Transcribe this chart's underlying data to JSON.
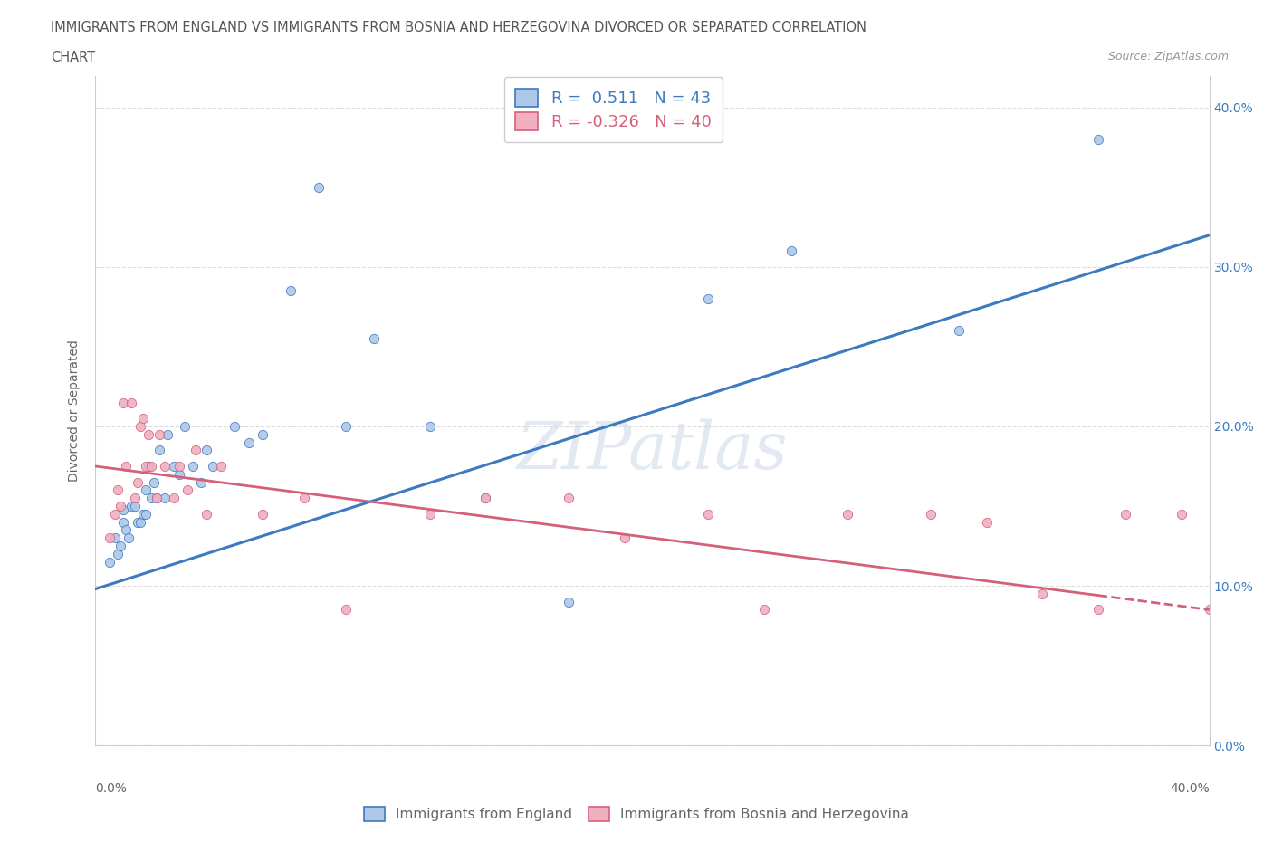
{
  "title_line1": "IMMIGRANTS FROM ENGLAND VS IMMIGRANTS FROM BOSNIA AND HERZEGOVINA DIVORCED OR SEPARATED CORRELATION",
  "title_line2": "CHART",
  "source": "Source: ZipAtlas.com",
  "ylabel": "Divorced or Separated",
  "legend_label1": "Immigrants from England",
  "legend_label2": "Immigrants from Bosnia and Herzegovina",
  "R1": 0.511,
  "N1": 43,
  "R2": -0.326,
  "N2": 40,
  "blue_color": "#adc8e8",
  "pink_color": "#f0b0c0",
  "blue_line_color": "#3d7abf",
  "pink_line_color": "#d4607a",
  "watermark_text": "ZIPatlas",
  "xlim": [
    0.0,
    0.4
  ],
  "ylim": [
    0.0,
    0.42
  ],
  "yticks": [
    0.0,
    0.1,
    0.2,
    0.3,
    0.4
  ],
  "blue_scatter_x": [
    0.005,
    0.007,
    0.008,
    0.009,
    0.01,
    0.01,
    0.011,
    0.012,
    0.013,
    0.014,
    0.015,
    0.016,
    0.017,
    0.018,
    0.018,
    0.019,
    0.02,
    0.021,
    0.022,
    0.023,
    0.025,
    0.026,
    0.028,
    0.03,
    0.032,
    0.035,
    0.038,
    0.04,
    0.042,
    0.05,
    0.055,
    0.06,
    0.07,
    0.08,
    0.09,
    0.1,
    0.12,
    0.14,
    0.17,
    0.22,
    0.25,
    0.31,
    0.36
  ],
  "blue_scatter_y": [
    0.115,
    0.13,
    0.12,
    0.125,
    0.14,
    0.148,
    0.135,
    0.13,
    0.15,
    0.15,
    0.14,
    0.14,
    0.145,
    0.145,
    0.16,
    0.175,
    0.155,
    0.165,
    0.155,
    0.185,
    0.155,
    0.195,
    0.175,
    0.17,
    0.2,
    0.175,
    0.165,
    0.185,
    0.175,
    0.2,
    0.19,
    0.195,
    0.285,
    0.35,
    0.2,
    0.255,
    0.2,
    0.155,
    0.09,
    0.28,
    0.31,
    0.26,
    0.38
  ],
  "pink_scatter_x": [
    0.005,
    0.007,
    0.008,
    0.009,
    0.01,
    0.011,
    0.013,
    0.014,
    0.015,
    0.016,
    0.017,
    0.018,
    0.019,
    0.02,
    0.022,
    0.023,
    0.025,
    0.028,
    0.03,
    0.033,
    0.036,
    0.04,
    0.045,
    0.06,
    0.075,
    0.09,
    0.12,
    0.14,
    0.17,
    0.19,
    0.22,
    0.24,
    0.27,
    0.3,
    0.32,
    0.34,
    0.36,
    0.37,
    0.39,
    0.4
  ],
  "pink_scatter_y": [
    0.13,
    0.145,
    0.16,
    0.15,
    0.215,
    0.175,
    0.215,
    0.155,
    0.165,
    0.2,
    0.205,
    0.175,
    0.195,
    0.175,
    0.155,
    0.195,
    0.175,
    0.155,
    0.175,
    0.16,
    0.185,
    0.145,
    0.175,
    0.145,
    0.155,
    0.085,
    0.145,
    0.155,
    0.155,
    0.13,
    0.145,
    0.085,
    0.145,
    0.145,
    0.14,
    0.095,
    0.085,
    0.145,
    0.145,
    0.085
  ],
  "blue_line_x0": 0.0,
  "blue_line_y0": 0.098,
  "blue_line_x1": 0.4,
  "blue_line_y1": 0.32,
  "pink_line_x0": 0.0,
  "pink_line_y0": 0.175,
  "pink_line_x1": 0.4,
  "pink_line_y1": 0.085
}
